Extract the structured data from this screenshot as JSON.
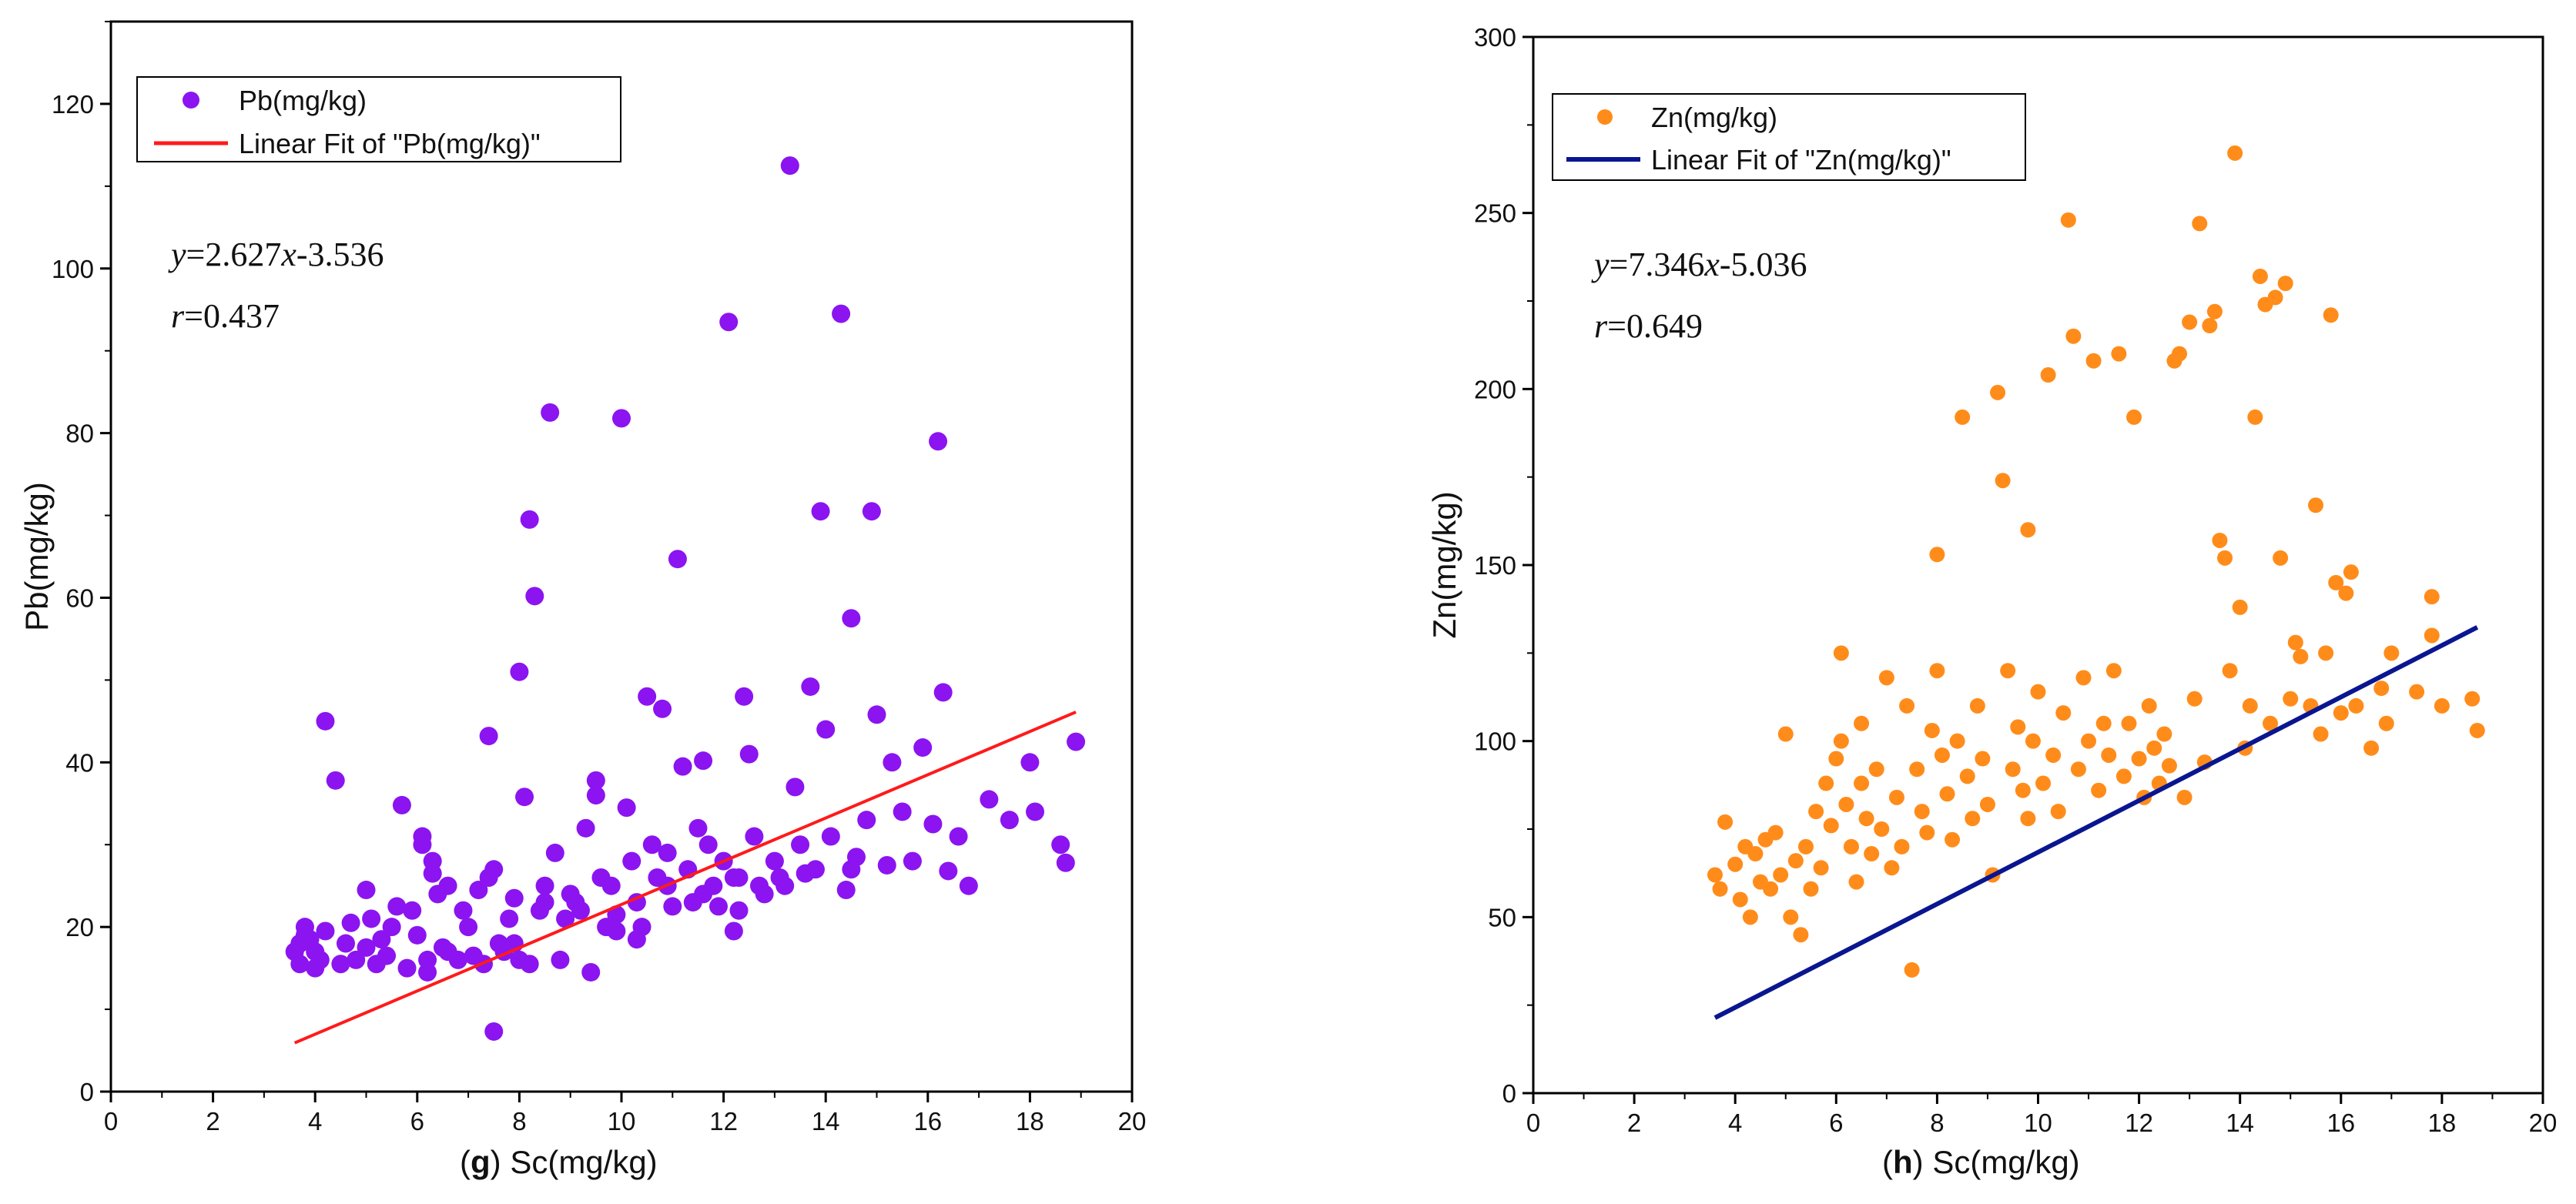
{
  "chart_data": [
    {
      "type": "scatter",
      "panel_letter": "g",
      "title": "",
      "xlabel": "Sc(mg/kg)",
      "ylabel": "Pb(mg/kg)",
      "xlim": [
        0,
        20
      ],
      "ylim": [
        0,
        130
      ],
      "xticks": [
        0,
        2,
        4,
        6,
        8,
        10,
        12,
        14,
        16,
        18,
        20
      ],
      "yticks": [
        0,
        20,
        40,
        60,
        80,
        100,
        120
      ],
      "point_color": "#8b14f0",
      "fit_color": "#ff1a1a",
      "legend": {
        "position": "top-left",
        "series_label": "Pb(mg/kg)",
        "fit_label": "Linear Fit of \"Pb(mg/kg)\""
      },
      "equation": {
        "lhs": "y",
        "rhs": "=2.627",
        "var": "x",
        "tail": "-3.536"
      },
      "correlation": {
        "sym": "r",
        "rest": "=0.437"
      },
      "fit": {
        "slope": 2.627,
        "intercept": -3.536,
        "x_range": [
          3.6,
          18.9
        ]
      },
      "points": [
        [
          3.6,
          17
        ],
        [
          3.7,
          15.5
        ],
        [
          3.8,
          19
        ],
        [
          3.9,
          18.5
        ],
        [
          4.0,
          17
        ],
        [
          4.1,
          16
        ],
        [
          4.2,
          19.5
        ],
        [
          3.8,
          20
        ],
        [
          4.0,
          15
        ],
        [
          3.7,
          18
        ],
        [
          4.2,
          45
        ],
        [
          4.4,
          37.8
        ],
        [
          4.5,
          15.5
        ],
        [
          4.6,
          18
        ],
        [
          4.7,
          20.5
        ],
        [
          4.8,
          16
        ],
        [
          5.0,
          17.5
        ],
        [
          5.1,
          21
        ],
        [
          5.2,
          15.5
        ],
        [
          5.3,
          18.5
        ],
        [
          5.4,
          16.5
        ],
        [
          5.5,
          20
        ],
        [
          5.6,
          22.5
        ],
        [
          5.7,
          34.8
        ],
        [
          5.8,
          15
        ],
        [
          5.9,
          22
        ],
        [
          6.0,
          19
        ],
        [
          6.1,
          31
        ],
        [
          6.1,
          30
        ],
        [
          6.2,
          16
        ],
        [
          6.2,
          14.5
        ],
        [
          6.3,
          28
        ],
        [
          6.3,
          26.5
        ],
        [
          6.4,
          24
        ],
        [
          6.5,
          17.5
        ],
        [
          6.6,
          25
        ],
        [
          6.8,
          16
        ],
        [
          6.9,
          22
        ],
        [
          7.0,
          20
        ],
        [
          7.1,
          16.5
        ],
        [
          7.2,
          24.5
        ],
        [
          7.3,
          15.5
        ],
        [
          7.4,
          43.2
        ],
        [
          7.4,
          26
        ],
        [
          7.5,
          27
        ],
        [
          7.5,
          7.3
        ],
        [
          7.6,
          18
        ],
        [
          7.7,
          17
        ],
        [
          7.8,
          21
        ],
        [
          7.9,
          23.5
        ],
        [
          8.0,
          16
        ],
        [
          8.0,
          51
        ],
        [
          8.1,
          35.8
        ],
        [
          8.2,
          69.5
        ],
        [
          8.2,
          15.5
        ],
        [
          8.3,
          60.2
        ],
        [
          8.4,
          22
        ],
        [
          8.5,
          25
        ],
        [
          8.6,
          82.5
        ],
        [
          8.7,
          29
        ],
        [
          8.8,
          16
        ],
        [
          8.9,
          21
        ],
        [
          9.0,
          24
        ],
        [
          9.2,
          22
        ],
        [
          9.3,
          32
        ],
        [
          9.4,
          14.5
        ],
        [
          9.5,
          37.8
        ],
        [
          9.5,
          36
        ],
        [
          9.6,
          26
        ],
        [
          9.7,
          20
        ],
        [
          9.8,
          25
        ],
        [
          9.9,
          21.5
        ],
        [
          10.0,
          81.8
        ],
        [
          10.1,
          34.5
        ],
        [
          10.2,
          28
        ],
        [
          10.3,
          23
        ],
        [
          10.4,
          20
        ],
        [
          10.5,
          48
        ],
        [
          10.6,
          30
        ],
        [
          10.7,
          26
        ],
        [
          10.8,
          46.5
        ],
        [
          10.9,
          25
        ],
        [
          11.0,
          22.5
        ],
        [
          11.1,
          64.7
        ],
        [
          11.2,
          39.5
        ],
        [
          11.3,
          27
        ],
        [
          11.4,
          23
        ],
        [
          11.5,
          32
        ],
        [
          11.6,
          40.2
        ],
        [
          11.7,
          30
        ],
        [
          11.8,
          25
        ],
        [
          11.9,
          22.5
        ],
        [
          12.0,
          28
        ],
        [
          12.1,
          93.5
        ],
        [
          12.2,
          26
        ],
        [
          12.3,
          22
        ],
        [
          12.4,
          48
        ],
        [
          12.5,
          41
        ],
        [
          12.6,
          31
        ],
        [
          12.7,
          25
        ],
        [
          12.8,
          24
        ],
        [
          13.0,
          28
        ],
        [
          13.1,
          26
        ],
        [
          13.3,
          112.5
        ],
        [
          13.4,
          37
        ],
        [
          13.5,
          30
        ],
        [
          13.6,
          26.5
        ],
        [
          13.7,
          49.2
        ],
        [
          13.8,
          27
        ],
        [
          13.9,
          70.5
        ],
        [
          14.0,
          44
        ],
        [
          14.1,
          31
        ],
        [
          14.3,
          94.5
        ],
        [
          14.4,
          24.5
        ],
        [
          14.5,
          57.5
        ],
        [
          14.6,
          28.5
        ],
        [
          14.8,
          33
        ],
        [
          14.9,
          70.5
        ],
        [
          15.0,
          45.8
        ],
        [
          15.2,
          27.5
        ],
        [
          15.3,
          40
        ],
        [
          15.5,
          34
        ],
        [
          15.7,
          28
        ],
        [
          15.9,
          41.8
        ],
        [
          16.1,
          32.5
        ],
        [
          16.2,
          79
        ],
        [
          16.3,
          48.5
        ],
        [
          16.4,
          26.8
        ],
        [
          16.6,
          31
        ],
        [
          16.8,
          25
        ],
        [
          17.2,
          35.5
        ],
        [
          17.6,
          33
        ],
        [
          18.0,
          40
        ],
        [
          18.1,
          34
        ],
        [
          18.6,
          30
        ],
        [
          18.7,
          27.8
        ],
        [
          18.9,
          42.5
        ],
        [
          5.0,
          24.5
        ],
        [
          6.6,
          17
        ],
        [
          9.1,
          23
        ],
        [
          10.9,
          29
        ],
        [
          11.6,
          24
        ],
        [
          12.3,
          26
        ],
        [
          13.2,
          25
        ],
        [
          14.5,
          27
        ],
        [
          9.9,
          19.5
        ],
        [
          12.2,
          19.5
        ],
        [
          7.9,
          18
        ],
        [
          8.5,
          23
        ],
        [
          10.3,
          18.5
        ]
      ]
    },
    {
      "type": "scatter",
      "panel_letter": "h",
      "title": "",
      "xlabel": "Sc(mg/kg)",
      "ylabel": "Zn(mg/kg)",
      "xlim": [
        0,
        20
      ],
      "ylim": [
        0,
        300
      ],
      "xticks": [
        0,
        2,
        4,
        6,
        8,
        10,
        12,
        14,
        16,
        18,
        20
      ],
      "yticks": [
        0,
        50,
        100,
        150,
        200,
        250,
        300
      ],
      "point_color": "#ff8c1a",
      "fit_color": "#0a1690",
      "legend": {
        "position": "top-left",
        "series_label": "Zn(mg/kg)",
        "fit_label": "Linear Fit of \"Zn(mg/kg)\""
      },
      "equation": {
        "lhs": "y",
        "rhs": "=7.346",
        "var": "x",
        "tail": "-5.036"
      },
      "correlation": {
        "sym": "r",
        "rest": "=0.649"
      },
      "fit": {
        "slope": 7.346,
        "intercept": -5.036,
        "x_range": [
          3.6,
          18.7
        ]
      },
      "points": [
        [
          3.6,
          62
        ],
        [
          3.7,
          58
        ],
        [
          3.8,
          77
        ],
        [
          4.0,
          65
        ],
        [
          4.1,
          55
        ],
        [
          4.2,
          70
        ],
        [
          4.3,
          50
        ],
        [
          4.4,
          68
        ],
        [
          4.5,
          60
        ],
        [
          4.6,
          72
        ],
        [
          4.7,
          58
        ],
        [
          4.8,
          74
        ],
        [
          4.9,
          62
        ],
        [
          5.0,
          102
        ],
        [
          5.1,
          50
        ],
        [
          5.2,
          66
        ],
        [
          5.3,
          45
        ],
        [
          5.4,
          70
        ],
        [
          5.5,
          58
        ],
        [
          5.6,
          80
        ],
        [
          5.7,
          64
        ],
        [
          5.8,
          88
        ],
        [
          5.9,
          76
        ],
        [
          6.0,
          95
        ],
        [
          6.1,
          125
        ],
        [
          6.1,
          100
        ],
        [
          6.2,
          82
        ],
        [
          6.3,
          70
        ],
        [
          6.4,
          60
        ],
        [
          6.5,
          88
        ],
        [
          6.6,
          78
        ],
        [
          6.7,
          68
        ],
        [
          6.8,
          92
        ],
        [
          6.9,
          75
        ],
        [
          7.0,
          118
        ],
        [
          7.1,
          64
        ],
        [
          7.2,
          84
        ],
        [
          7.3,
          70
        ],
        [
          7.4,
          110
        ],
        [
          7.5,
          35
        ],
        [
          7.6,
          92
        ],
        [
          7.7,
          80
        ],
        [
          7.8,
          74
        ],
        [
          7.9,
          103
        ],
        [
          8.0,
          153
        ],
        [
          8.0,
          120
        ],
        [
          8.1,
          96
        ],
        [
          8.2,
          85
        ],
        [
          8.3,
          72
        ],
        [
          8.4,
          100
        ],
        [
          8.5,
          192
        ],
        [
          8.6,
          90
        ],
        [
          8.7,
          78
        ],
        [
          8.8,
          110
        ],
        [
          8.9,
          95
        ],
        [
          9.0,
          82
        ],
        [
          9.1,
          62
        ],
        [
          9.2,
          199
        ],
        [
          9.3,
          174
        ],
        [
          9.4,
          120
        ],
        [
          9.5,
          92
        ],
        [
          9.6,
          104
        ],
        [
          9.7,
          86
        ],
        [
          9.8,
          160
        ],
        [
          9.9,
          100
        ],
        [
          10.0,
          114
        ],
        [
          10.1,
          88
        ],
        [
          10.2,
          204
        ],
        [
          10.3,
          96
        ],
        [
          10.4,
          80
        ],
        [
          10.5,
          108
        ],
        [
          10.6,
          248
        ],
        [
          10.7,
          215
        ],
        [
          10.8,
          92
        ],
        [
          10.9,
          118
        ],
        [
          11.0,
          100
        ],
        [
          11.1,
          208
        ],
        [
          11.2,
          86
        ],
        [
          11.3,
          105
        ],
        [
          11.4,
          96
        ],
        [
          11.5,
          120
        ],
        [
          11.6,
          210
        ],
        [
          11.7,
          90
        ],
        [
          11.8,
          105
        ],
        [
          11.9,
          192
        ],
        [
          12.0,
          95
        ],
        [
          12.1,
          84
        ],
        [
          12.2,
          110
        ],
        [
          12.3,
          98
        ],
        [
          12.4,
          88
        ],
        [
          12.5,
          102
        ],
        [
          12.6,
          93
        ],
        [
          12.7,
          208
        ],
        [
          12.8,
          210
        ],
        [
          12.9,
          84
        ],
        [
          13.0,
          219
        ],
        [
          13.1,
          112
        ],
        [
          13.2,
          247
        ],
        [
          13.3,
          94
        ],
        [
          13.4,
          218
        ],
        [
          13.5,
          222
        ],
        [
          13.6,
          157
        ],
        [
          13.7,
          152
        ],
        [
          13.8,
          120
        ],
        [
          13.9,
          267
        ],
        [
          14.0,
          138
        ],
        [
          14.1,
          98
        ],
        [
          14.2,
          110
        ],
        [
          14.3,
          192
        ],
        [
          14.4,
          232
        ],
        [
          14.5,
          224
        ],
        [
          14.6,
          105
        ],
        [
          14.7,
          226
        ],
        [
          14.8,
          152
        ],
        [
          14.9,
          230
        ],
        [
          15.0,
          112
        ],
        [
          15.1,
          128
        ],
        [
          15.2,
          124
        ],
        [
          15.4,
          110
        ],
        [
          15.5,
          167
        ],
        [
          15.6,
          102
        ],
        [
          15.7,
          125
        ],
        [
          15.8,
          221
        ],
        [
          15.9,
          145
        ],
        [
          16.0,
          108
        ],
        [
          16.1,
          142
        ],
        [
          16.2,
          148
        ],
        [
          16.3,
          110
        ],
        [
          16.6,
          98
        ],
        [
          16.8,
          115
        ],
        [
          16.9,
          105
        ],
        [
          17.0,
          125
        ],
        [
          17.5,
          114
        ],
        [
          17.8,
          141
        ],
        [
          17.8,
          130
        ],
        [
          18.0,
          110
        ],
        [
          18.6,
          112
        ],
        [
          18.7,
          103
        ],
        [
          6.5,
          105
        ],
        [
          9.8,
          78
        ]
      ]
    }
  ]
}
